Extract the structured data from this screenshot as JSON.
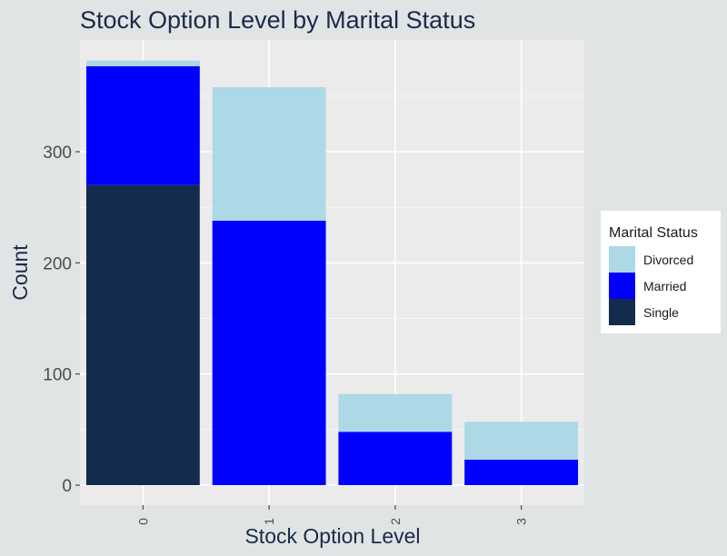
{
  "chart_data": {
    "type": "bar",
    "stacked": true,
    "title": "Stock Option Level by Marital Status",
    "xlabel": "Stock Option Level",
    "ylabel": "Count",
    "categories": [
      "0",
      "1",
      "2",
      "3"
    ],
    "series": [
      {
        "name": "Single",
        "color": "#132b4c",
        "values": [
          270,
          0,
          0,
          0
        ]
      },
      {
        "name": "Married",
        "color": "#0000ff",
        "values": [
          107,
          238,
          48,
          23
        ]
      },
      {
        "name": "Divorced",
        "color": "#add8e6",
        "values": [
          5,
          120,
          34,
          34
        ]
      }
    ],
    "ylim": [
      0,
      390
    ],
    "yticks": [
      0,
      100,
      200,
      300
    ],
    "grid": true,
    "legend": {
      "title": "Marital Status",
      "position": "right",
      "order": [
        "Divorced",
        "Married",
        "Single"
      ]
    },
    "colors": {
      "background": "#e0e4e4",
      "panel": "#ebebeb",
      "grid": "#ffffff",
      "text": "#1b2a4a"
    }
  }
}
